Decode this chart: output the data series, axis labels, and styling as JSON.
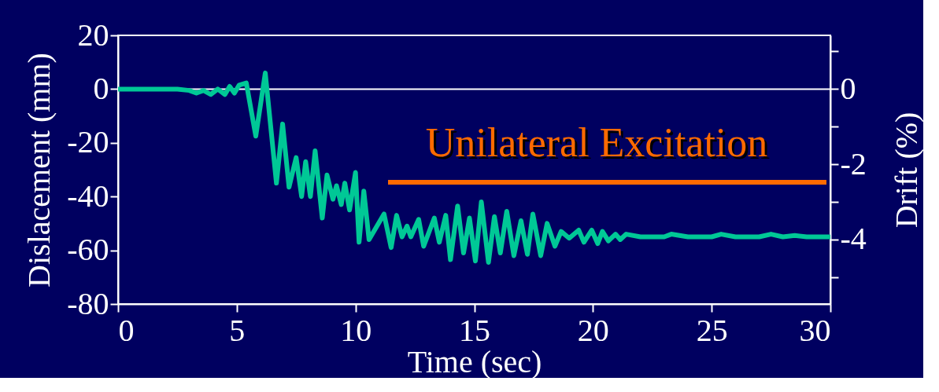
{
  "chart_data": {
    "type": "line",
    "xlabel": "Time (sec)",
    "ylabel": "Dislacement  (mm)",
    "y2label": "Drift (%)",
    "annotations": [
      "Unilateral Excitation"
    ],
    "xlim": [
      0,
      30
    ],
    "xticks": [
      0,
      5,
      10,
      15,
      20,
      25,
      30
    ],
    "ylim": [
      -80,
      20
    ],
    "yticks": [
      20,
      0,
      -20,
      -40,
      -60,
      -80
    ],
    "y2lim": [
      -5.71,
      1.42
    ],
    "y2ticks": [
      {
        "value": 1,
        "label": null
      },
      0,
      {
        "value": -1,
        "label": null
      },
      -2,
      {
        "value": -3,
        "label": null
      },
      -4,
      {
        "value": -5,
        "label": null
      }
    ],
    "ref_lines": [
      {
        "axis": "y",
        "value": 0,
        "color": "#ffffff"
      }
    ],
    "grid": false,
    "legend": false,
    "marker": "none",
    "line_style": "solid",
    "series": [
      {
        "color": "#00c896",
        "x": [
          0,
          2.5,
          3.0,
          3.3,
          3.6,
          3.9,
          4.2,
          4.5,
          4.7,
          4.9,
          5.1,
          5.4,
          5.8,
          6.2,
          6.67,
          6.93,
          7.2,
          7.5,
          7.73,
          7.9,
          8.1,
          8.3,
          8.6,
          8.8,
          9.05,
          9.2,
          9.4,
          9.55,
          9.75,
          10.0,
          10.15,
          10.35,
          10.57,
          11.2,
          11.5,
          11.73,
          11.96,
          12.17,
          12.33,
          12.66,
          12.87,
          13.32,
          13.53,
          13.8,
          14.0,
          14.3,
          14.55,
          14.8,
          15.05,
          15.3,
          15.6,
          15.85,
          16.1,
          16.37,
          16.67,
          16.97,
          17.24,
          17.47,
          17.8,
          18.07,
          18.4,
          18.66,
          19.0,
          19.4,
          19.62,
          19.95,
          20.2,
          20.4,
          20.65,
          20.95,
          21.15,
          21.4,
          22.0,
          23.0,
          23.3,
          24.0,
          25.0,
          25.4,
          26.0,
          27.0,
          27.5,
          28.0,
          28.5,
          29.0,
          30.0
        ],
        "values": [
          0,
          0,
          -0.5,
          -1.5,
          -0.5,
          -2,
          0,
          -2,
          1,
          -1.5,
          1.5,
          2.3,
          -17.5,
          6,
          -35,
          -13,
          -36.5,
          -25.5,
          -40,
          -27,
          -40,
          -23,
          -48,
          -32,
          -41,
          -36,
          -43,
          -35,
          -45,
          -31,
          -57,
          -38,
          -56,
          -46.5,
          -59,
          -47,
          -55,
          -51,
          -55,
          -48.5,
          -58.5,
          -48,
          -57,
          -47,
          -63.5,
          -43.5,
          -61,
          -48,
          -64,
          -42,
          -64.5,
          -47.5,
          -61,
          -45.5,
          -62,
          -49,
          -61.5,
          -46.5,
          -62,
          -50,
          -58.5,
          -53,
          -55.5,
          -52.5,
          -57,
          -52.5,
          -57.5,
          -53,
          -56.5,
          -54,
          -56,
          -54,
          -55,
          -55,
          -54,
          -55,
          -55,
          -54,
          -55,
          -55,
          -54,
          -55,
          -54.5,
          -55,
          -55
        ]
      }
    ]
  }
}
